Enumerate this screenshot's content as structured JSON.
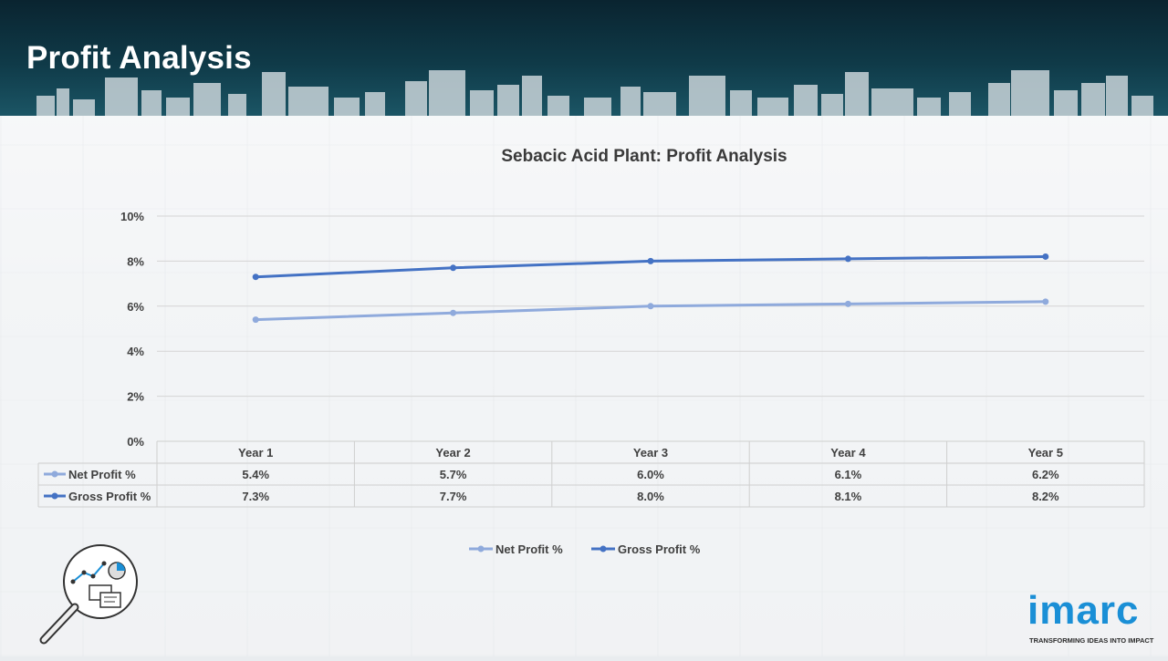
{
  "page": {
    "title": "Profit Analysis"
  },
  "logo": {
    "name": "imarc",
    "tagline": "TRANSFORMING IDEAS INTO IMPACT"
  },
  "chart_data": {
    "type": "line",
    "title": "Sebacic Acid Plant: Profit Analysis",
    "categories": [
      "Year 1",
      "Year 2",
      "Year 3",
      "Year 4",
      "Year 5"
    ],
    "series": [
      {
        "name": "Net Profit %",
        "values": [
          5.4,
          5.7,
          6.0,
          6.1,
          6.2
        ],
        "labels": [
          "5.4%",
          "5.7%",
          "6.0%",
          "6.1%",
          "6.2%"
        ],
        "color": "#8faadc"
      },
      {
        "name": "Gross Profit %",
        "values": [
          7.3,
          7.7,
          8.0,
          8.1,
          8.2
        ],
        "labels": [
          "7.3%",
          "7.7%",
          "8.0%",
          "8.1%",
          "8.2%"
        ],
        "color": "#4472c4"
      }
    ],
    "ylim": [
      0,
      10
    ],
    "yticks": [
      "0%",
      "2%",
      "4%",
      "6%",
      "8%",
      "10%"
    ],
    "grid": true,
    "legend_position": "bottom",
    "data_table": true
  }
}
